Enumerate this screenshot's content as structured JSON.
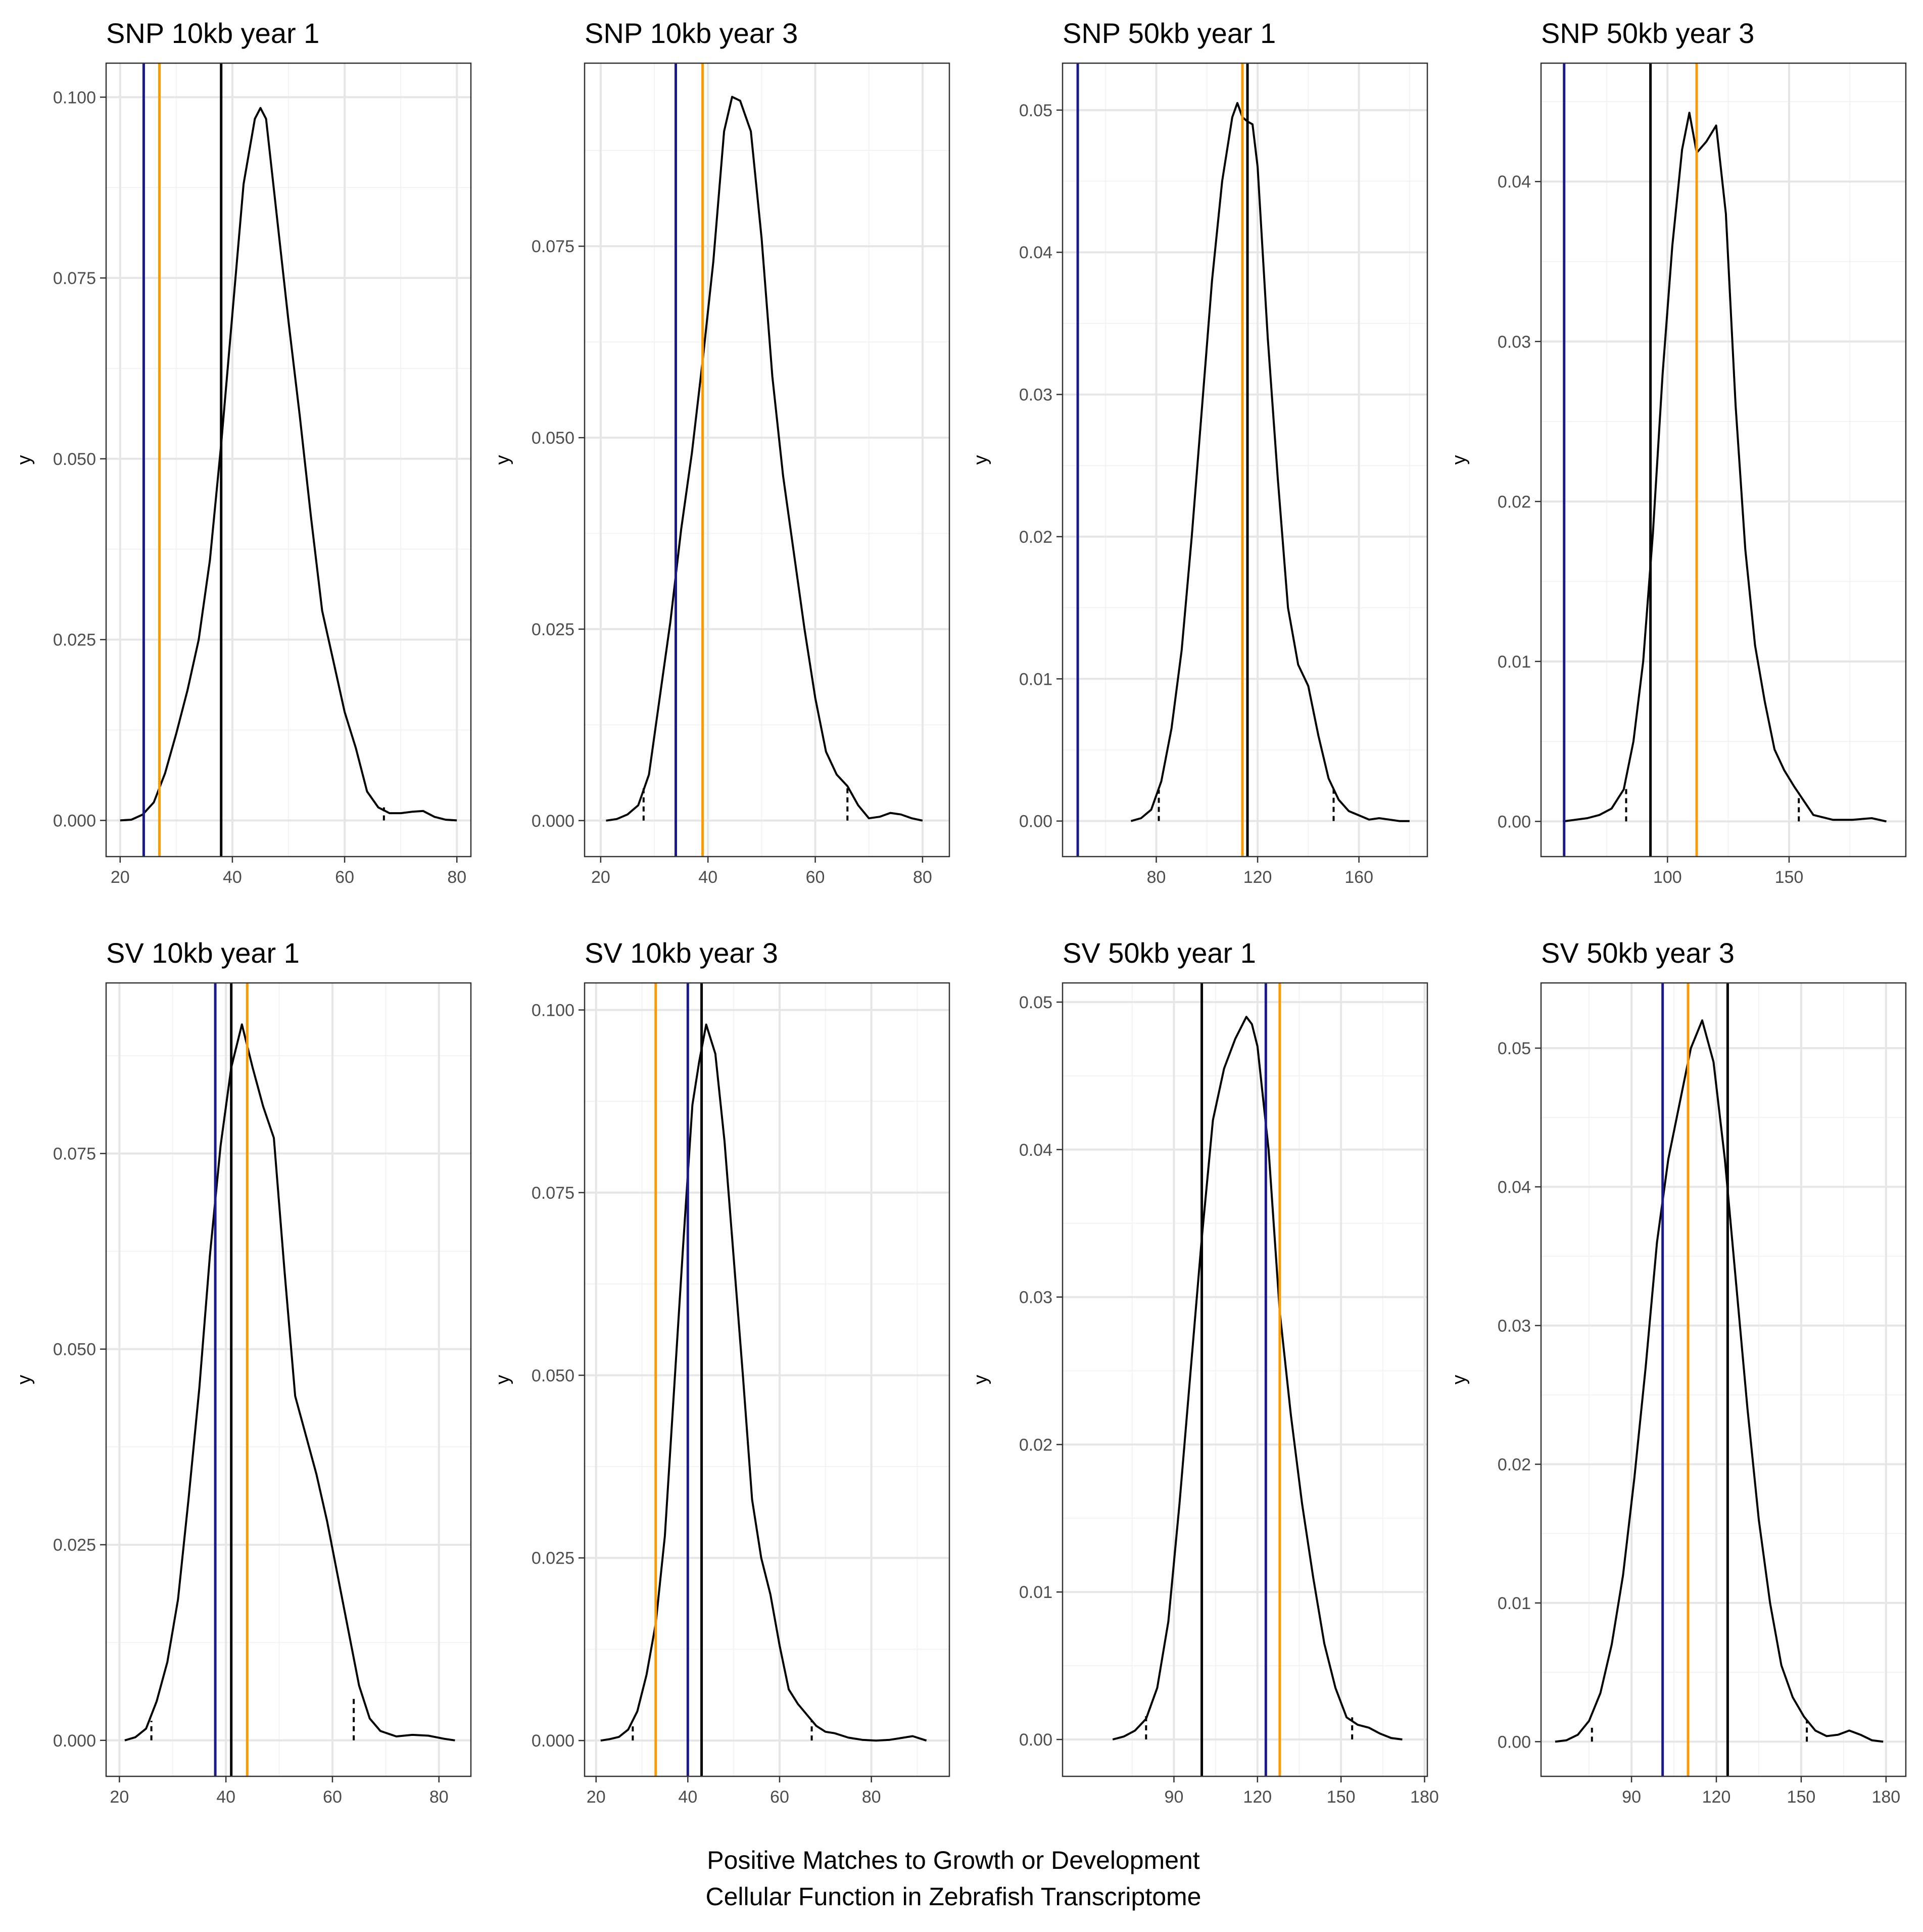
{
  "xlabel_lines": [
    "Positive Matches to Growth or Development",
    "Cellular Function  in Zebrafish Transcriptome"
  ],
  "colors": {
    "blue": "#1a1a8c",
    "orange": "#ff9900",
    "black": "#000000",
    "density": "#000000"
  },
  "chart_data": [
    {
      "type": "line",
      "title": "SNP 10kb year 1",
      "xlabel": "",
      "ylabel": "y",
      "xlim": [
        17.5,
        82.5
      ],
      "ylim": [
        -0.005,
        0.1047
      ],
      "xticks": [
        20,
        40,
        60,
        80
      ],
      "xtick_labels": [
        "20",
        "40",
        "60",
        "80"
      ],
      "yticks": [
        0,
        0.025,
        0.05,
        0.075,
        0.1
      ],
      "ytick_labels": [
        "0.000",
        "0.025",
        "0.050",
        "0.075",
        "0.100"
      ],
      "x": [
        20,
        22,
        24,
        26,
        28,
        30,
        32,
        34,
        36,
        38,
        40,
        42,
        44,
        45,
        46,
        48,
        50,
        52,
        54,
        56,
        58,
        60,
        62,
        64,
        66,
        68,
        70,
        72,
        74,
        76,
        78,
        80
      ],
      "y": [
        0.0,
        0.0001,
        0.0008,
        0.0025,
        0.0065,
        0.012,
        0.018,
        0.025,
        0.036,
        0.052,
        0.07,
        0.088,
        0.097,
        0.0985,
        0.097,
        0.083,
        0.069,
        0.056,
        0.042,
        0.029,
        0.022,
        0.015,
        0.01,
        0.004,
        0.0018,
        0.001,
        0.001,
        0.0012,
        0.0013,
        0.0005,
        0.0001,
        0.0
      ],
      "vlines": [
        {
          "x": 24.2,
          "color": "blue"
        },
        {
          "x": 27,
          "color": "orange"
        },
        {
          "x": 38,
          "color": "black"
        }
      ],
      "quantiles": [
        {
          "x": 67.0,
          "y": 0.0018
        }
      ]
    },
    {
      "type": "line",
      "title": "SNP 10kb year 3",
      "xlabel": "",
      "ylabel": "y",
      "xlim": [
        17.0,
        85.0
      ],
      "ylim": [
        -0.0047,
        0.0989
      ],
      "xticks": [
        20,
        40,
        60,
        80
      ],
      "xtick_labels": [
        "20",
        "40",
        "60",
        "80"
      ],
      "yticks": [
        0,
        0.025,
        0.05,
        0.075
      ],
      "ytick_labels": [
        "0.000",
        "0.025",
        "0.050",
        "0.075"
      ],
      "x": [
        21,
        23,
        25,
        27,
        29,
        31,
        33,
        35,
        37,
        39,
        41,
        43,
        44.5,
        46,
        48,
        50,
        52,
        54,
        56,
        58,
        60,
        62,
        64,
        66,
        68,
        70,
        72,
        74,
        76,
        78,
        80
      ],
      "y": [
        0.0,
        0.0002,
        0.0008,
        0.002,
        0.006,
        0.016,
        0.026,
        0.038,
        0.048,
        0.06,
        0.073,
        0.09,
        0.0945,
        0.094,
        0.09,
        0.076,
        0.058,
        0.045,
        0.035,
        0.025,
        0.016,
        0.009,
        0.006,
        0.0045,
        0.002,
        0.0003,
        0.0005,
        0.001,
        0.0008,
        0.0003,
        0.0
      ],
      "vlines": [
        {
          "x": 34,
          "color": "blue"
        },
        {
          "x": 39,
          "color": "orange"
        }
      ],
      "quantiles": [
        {
          "x": 28.0,
          "y": 0.0042
        },
        {
          "x": 66.0,
          "y": 0.0045
        }
      ]
    },
    {
      "type": "line",
      "title": "SNP 50kb year 1",
      "xlabel": "",
      "ylabel": "y",
      "xlim": [
        43.0,
        187.0
      ],
      "ylim": [
        -0.0025,
        0.0533
      ],
      "xticks": [
        80,
        120,
        160
      ],
      "xtick_labels": [
        "80",
        "120",
        "160"
      ],
      "yticks": [
        0,
        0.01,
        0.02,
        0.03,
        0.04,
        0.05
      ],
      "ytick_labels": [
        "0.00",
        "0.01",
        "0.02",
        "0.03",
        "0.04",
        "0.05"
      ],
      "x": [
        70,
        74,
        78,
        82,
        86,
        90,
        94,
        98,
        102,
        106,
        110,
        112,
        114,
        116,
        118,
        120,
        124,
        128,
        132,
        136,
        140,
        144,
        148,
        152,
        156,
        160,
        164,
        168,
        172,
        176,
        180
      ],
      "y": [
        0.0,
        0.0002,
        0.0008,
        0.0028,
        0.0065,
        0.012,
        0.02,
        0.029,
        0.038,
        0.045,
        0.0495,
        0.0505,
        0.0495,
        0.0492,
        0.049,
        0.046,
        0.034,
        0.024,
        0.015,
        0.011,
        0.0095,
        0.006,
        0.003,
        0.0015,
        0.0007,
        0.0004,
        0.0001,
        0.0002,
        0.0001,
        0.0,
        0.0
      ],
      "vlines": [
        {
          "x": 49,
          "color": "blue"
        },
        {
          "x": 114,
          "color": "orange"
        },
        {
          "x": 116,
          "color": "black"
        }
      ],
      "quantiles": [
        {
          "x": 81.0,
          "y": 0.0022
        },
        {
          "x": 150.0,
          "y": 0.0025
        }
      ]
    },
    {
      "type": "line",
      "title": "SNP 50kb year 3",
      "xlabel": "",
      "ylabel": "y",
      "xlim": [
        48.0,
        198.0
      ],
      "ylim": [
        -0.0022,
        0.0474
      ],
      "xticks": [
        100,
        150
      ],
      "xtick_labels": [
        "100",
        "150"
      ],
      "yticks": [
        0,
        0.01,
        0.02,
        0.03,
        0.04
      ],
      "ytick_labels": [
        "0.00",
        "0.01",
        "0.02",
        "0.03",
        "0.04"
      ],
      "x": [
        57,
        62,
        67,
        72,
        77,
        82,
        86,
        90,
        94,
        98,
        102,
        106,
        109,
        112,
        116,
        120,
        124,
        128,
        132,
        136,
        140,
        144,
        148,
        152,
        156,
        160,
        168,
        176,
        184,
        190
      ],
      "y": [
        0.0,
        0.0001,
        0.0002,
        0.0004,
        0.0008,
        0.002,
        0.005,
        0.01,
        0.018,
        0.028,
        0.036,
        0.042,
        0.0443,
        0.0418,
        0.0425,
        0.0435,
        0.038,
        0.026,
        0.017,
        0.011,
        0.0075,
        0.0045,
        0.0032,
        0.0022,
        0.0013,
        0.0004,
        0.0001,
        0.0001,
        0.0002,
        0.0
      ],
      "vlines": [
        {
          "x": 57.5,
          "color": "blue"
        },
        {
          "x": 93,
          "color": "black"
        },
        {
          "x": 112,
          "color": "orange"
        }
      ],
      "quantiles": [
        {
          "x": 83.0,
          "y": 0.0022
        },
        {
          "x": 154.0,
          "y": 0.0018
        }
      ]
    },
    {
      "type": "line",
      "title": "SV 10kb year 1",
      "xlabel": "",
      "ylabel": "y",
      "xlim": [
        17.5,
        86.0
      ],
      "ylim": [
        -0.0046,
        0.0968
      ],
      "xticks": [
        20,
        40,
        60,
        80
      ],
      "xtick_labels": [
        "20",
        "40",
        "60",
        "80"
      ],
      "yticks": [
        0,
        0.025,
        0.05,
        0.075
      ],
      "ytick_labels": [
        "0.000",
        "0.025",
        "0.050",
        "0.075"
      ],
      "x": [
        21,
        23,
        25,
        27,
        29,
        31,
        33,
        35,
        37,
        39,
        41,
        43,
        45,
        47,
        49,
        51,
        53,
        55,
        57,
        59,
        61,
        63,
        65,
        67,
        69,
        72,
        75,
        78,
        81,
        83
      ],
      "y": [
        0.0,
        0.0004,
        0.0015,
        0.005,
        0.01,
        0.018,
        0.031,
        0.045,
        0.062,
        0.076,
        0.086,
        0.0915,
        0.086,
        0.081,
        0.077,
        0.06,
        0.044,
        0.039,
        0.034,
        0.028,
        0.021,
        0.014,
        0.007,
        0.0028,
        0.0012,
        0.0005,
        0.0007,
        0.0006,
        0.0002,
        0.0
      ],
      "vlines": [
        {
          "x": 38,
          "color": "blue"
        },
        {
          "x": 41,
          "color": "black"
        },
        {
          "x": 44,
          "color": "orange"
        }
      ],
      "quantiles": [
        {
          "x": 26.0,
          "y": 0.0025
        },
        {
          "x": 64.0,
          "y": 0.0055
        }
      ]
    },
    {
      "type": "line",
      "title": "SV 10kb year 3",
      "xlabel": "",
      "ylabel": "y",
      "xlim": [
        17.5,
        97.0
      ],
      "ylim": [
        -0.0049,
        0.1037
      ],
      "xticks": [
        20,
        40,
        60,
        80
      ],
      "xtick_labels": [
        "20",
        "40",
        "60",
        "80"
      ],
      "yticks": [
        0,
        0.025,
        0.05,
        0.075,
        0.1
      ],
      "ytick_labels": [
        "0.000",
        "0.025",
        "0.050",
        "0.075",
        "0.100"
      ],
      "x": [
        21,
        23,
        25,
        27,
        29,
        31,
        33,
        35,
        37,
        39,
        41,
        42.5,
        44,
        46,
        48,
        50,
        52,
        54,
        56,
        58,
        60,
        62,
        64,
        66,
        68,
        70,
        72,
        75,
        78,
        81,
        84,
        87,
        89,
        92
      ],
      "y": [
        0.0,
        0.0002,
        0.0005,
        0.0015,
        0.004,
        0.009,
        0.016,
        0.028,
        0.048,
        0.068,
        0.087,
        0.093,
        0.098,
        0.094,
        0.082,
        0.066,
        0.05,
        0.033,
        0.025,
        0.02,
        0.013,
        0.007,
        0.005,
        0.0035,
        0.002,
        0.0012,
        0.001,
        0.0004,
        0.0001,
        0.0,
        0.0001,
        0.0004,
        0.0006,
        0.0
      ],
      "vlines": [
        {
          "x": 33,
          "color": "orange"
        },
        {
          "x": 40,
          "color": "blue"
        },
        {
          "x": 43,
          "color": "black"
        }
      ],
      "quantiles": [
        {
          "x": 28.0,
          "y": 0.0022
        },
        {
          "x": 67.0,
          "y": 0.0028
        }
      ]
    },
    {
      "type": "line",
      "title": "SV 50kb year 1",
      "xlabel": "",
      "ylabel": "y",
      "xlim": [
        50.0,
        181.0
      ],
      "ylim": [
        -0.0025,
        0.0513
      ],
      "xticks": [
        90,
        120,
        150,
        180
      ],
      "xtick_labels": [
        "90",
        "120",
        "150",
        "180"
      ],
      "yticks": [
        0,
        0.01,
        0.02,
        0.03,
        0.04,
        0.05
      ],
      "ytick_labels": [
        "0.00",
        "0.01",
        "0.02",
        "0.03",
        "0.04",
        "0.05"
      ],
      "x": [
        68,
        72,
        76,
        80,
        84,
        88,
        92,
        96,
        100,
        104,
        108,
        112,
        116,
        118,
        120,
        124,
        128,
        132,
        136,
        140,
        144,
        148,
        152,
        156,
        160,
        164,
        168,
        172
      ],
      "y": [
        0.0,
        0.0002,
        0.0006,
        0.0014,
        0.0035,
        0.008,
        0.016,
        0.025,
        0.034,
        0.042,
        0.0455,
        0.0475,
        0.049,
        0.0485,
        0.047,
        0.04,
        0.029,
        0.022,
        0.016,
        0.011,
        0.0065,
        0.0035,
        0.0015,
        0.001,
        0.0008,
        0.0004,
        0.0001,
        0.0
      ],
      "vlines": [
        {
          "x": 100,
          "color": "black"
        },
        {
          "x": 123,
          "color": "blue"
        },
        {
          "x": 128,
          "color": "orange"
        }
      ],
      "quantiles": [
        {
          "x": 80.0,
          "y": 0.0018
        },
        {
          "x": 154.0,
          "y": 0.0015
        }
      ]
    },
    {
      "type": "line",
      "title": "SV 50kb year 3",
      "xlabel": "",
      "ylabel": "y",
      "xlim": [
        58.0,
        187.0
      ],
      "ylim": [
        -0.0025,
        0.0547
      ],
      "xticks": [
        90,
        120,
        150,
        180
      ],
      "xtick_labels": [
        "90",
        "120",
        "150",
        "180"
      ],
      "yticks": [
        0,
        0.01,
        0.02,
        0.03,
        0.04,
        0.05
      ],
      "ytick_labels": [
        "0.00",
        "0.01",
        "0.02",
        "0.03",
        "0.04",
        "0.05"
      ],
      "x": [
        63,
        67,
        71,
        75,
        79,
        83,
        87,
        91,
        95,
        99,
        103,
        107,
        111,
        115,
        119,
        123,
        127,
        131,
        135,
        139,
        143,
        147,
        151,
        155,
        159,
        163,
        167,
        171,
        175,
        179
      ],
      "y": [
        0.0,
        0.0001,
        0.0005,
        0.0015,
        0.0035,
        0.007,
        0.012,
        0.019,
        0.027,
        0.036,
        0.042,
        0.046,
        0.05,
        0.052,
        0.049,
        0.042,
        0.033,
        0.024,
        0.016,
        0.01,
        0.0055,
        0.0032,
        0.0018,
        0.0008,
        0.0004,
        0.0005,
        0.0008,
        0.0005,
        0.0001,
        0.0
      ],
      "vlines": [
        {
          "x": 101,
          "color": "blue"
        },
        {
          "x": 110,
          "color": "orange"
        },
        {
          "x": 124,
          "color": "black"
        }
      ],
      "quantiles": [
        {
          "x": 76.0,
          "y": 0.001
        },
        {
          "x": 152.0,
          "y": 0.0015
        }
      ]
    }
  ]
}
